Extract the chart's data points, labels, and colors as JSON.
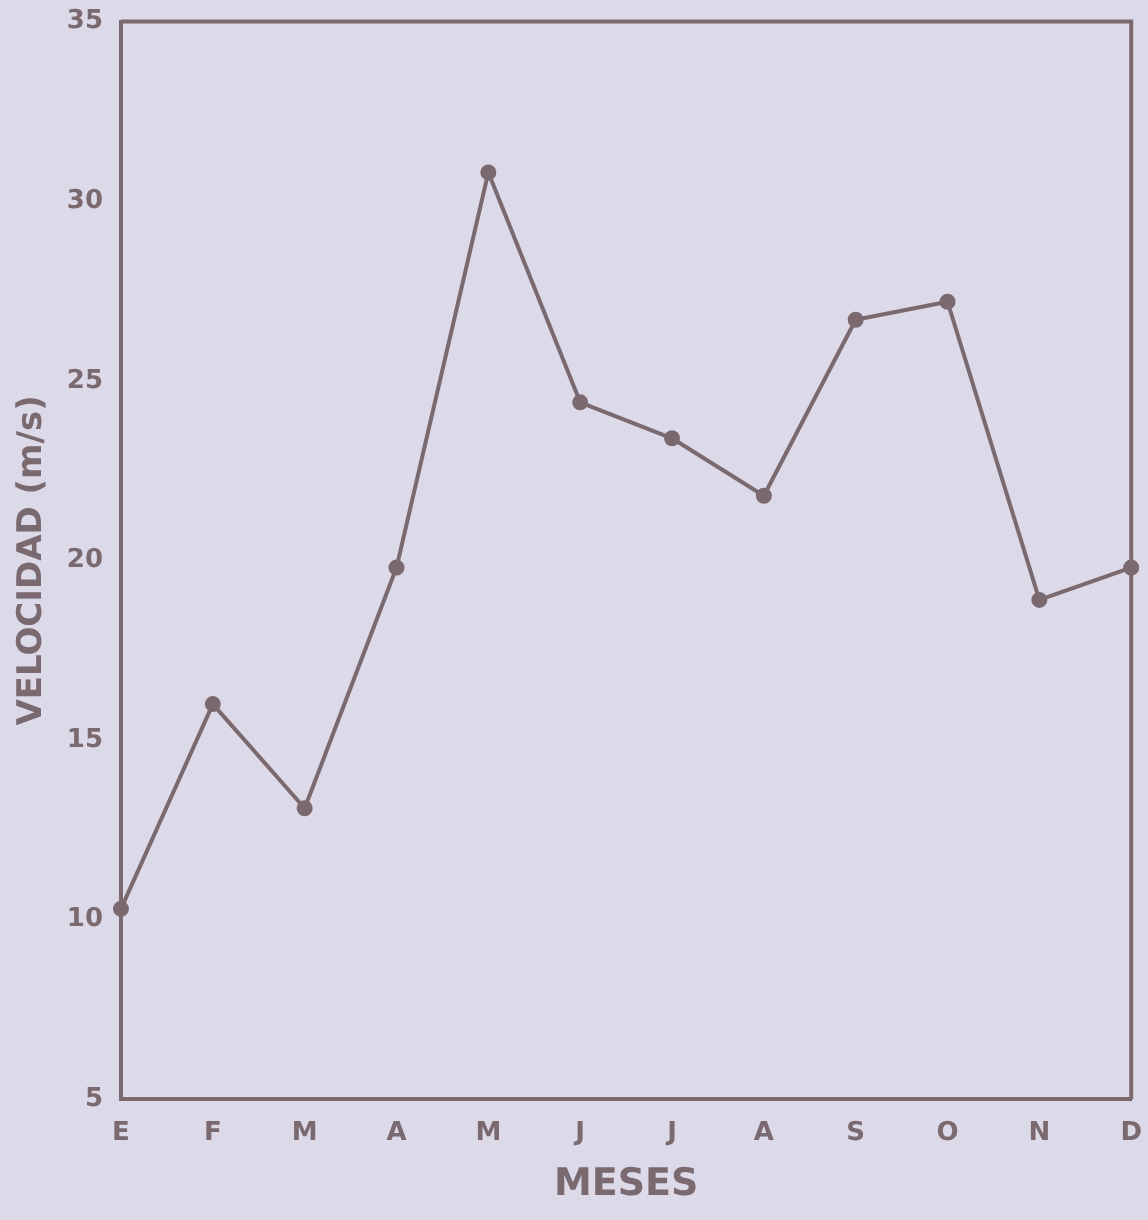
{
  "chart_data": {
    "type": "line",
    "xlabel": "MESES",
    "ylabel": "VELOCIDAD (m/s)",
    "categories": [
      "E",
      "F",
      "M",
      "A",
      "M",
      "J",
      "J",
      "A",
      "S",
      "O",
      "N",
      "D"
    ],
    "series": [
      {
        "color": "#7a6a70",
        "values": [
          10.3,
          16,
          13.1,
          19.8,
          30.8,
          24.4,
          23.4,
          21.8,
          26.7,
          27.2,
          18.9,
          19.8
        ]
      }
    ],
    "ylim": [
      5,
      35
    ],
    "yticks": [
      5,
      10,
      15,
      20,
      25,
      30,
      35
    ],
    "grid": false,
    "legend": false,
    "marker": "circle",
    "line_style": "solid"
  }
}
